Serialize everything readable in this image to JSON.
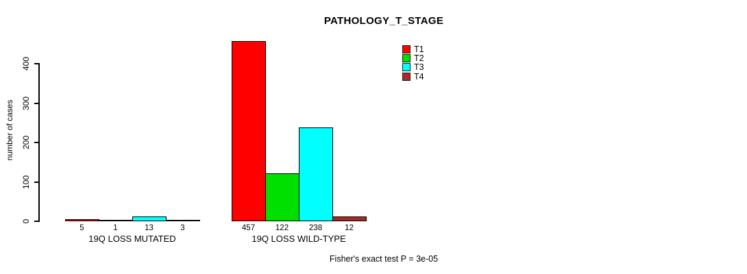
{
  "chart_data": {
    "type": "bar",
    "grouped": true,
    "title": "PATHOLOGY_T_STAGE",
    "ylabel": "number of cases",
    "xlabel": "",
    "ylim": [
      0,
      460
    ],
    "yticks": [
      0,
      100,
      200,
      300,
      400
    ],
    "grid": false,
    "legend_position": "top-right-inside",
    "categories": [
      "19Q LOSS MUTATED",
      "19Q LOSS WILD-TYPE"
    ],
    "series": [
      {
        "name": "T1",
        "color": "#FF0000",
        "values": [
          5,
          457
        ]
      },
      {
        "name": "T2",
        "color": "#00E000",
        "values": [
          1,
          122
        ]
      },
      {
        "name": "T3",
        "color": "#00FFFF",
        "values": [
          13,
          238
        ]
      },
      {
        "name": "T4",
        "color": "#A52A2A",
        "values": [
          3,
          12
        ]
      }
    ],
    "bar_value_labels": [
      [
        "5",
        "1",
        "13",
        "3"
      ],
      [
        "457",
        "122",
        "238",
        "12"
      ]
    ],
    "footnote": "Fisher's exact test P = 3e-05"
  }
}
